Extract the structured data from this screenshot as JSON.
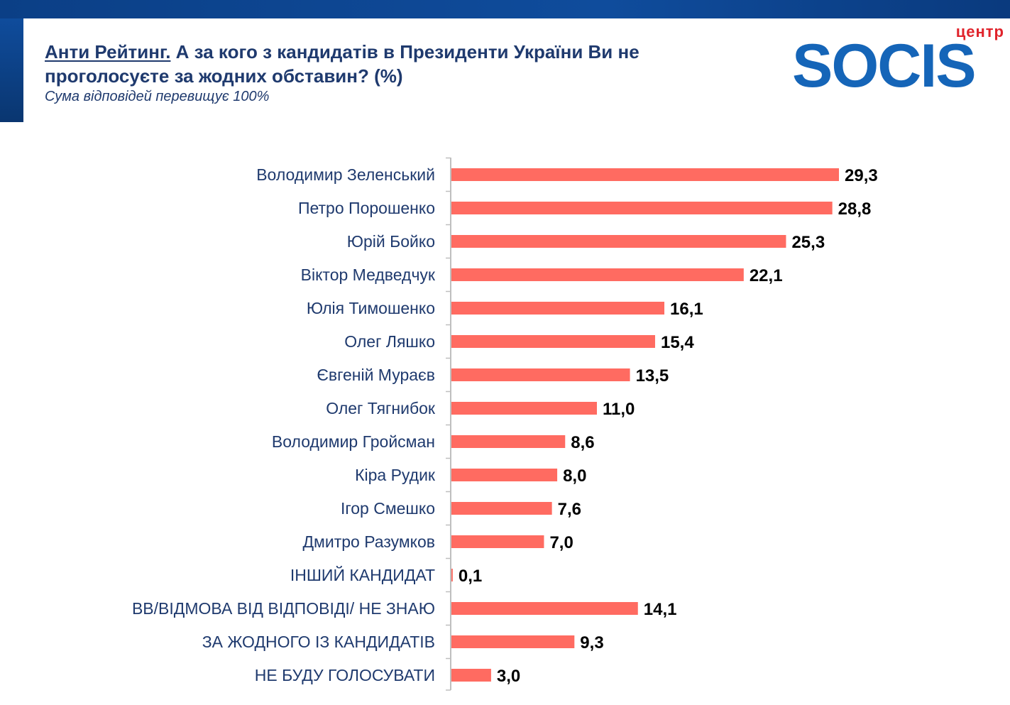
{
  "header": {
    "title_accent": "Анти Рейтинг.",
    "title_rest": " А за кого з кандидатів в Президенти України Ви не проголосуєте за жодних обставин? (%)",
    "subtitle": "Сума відповідей перевищує 100%"
  },
  "logo": {
    "small_text": "центр",
    "big_text": "SOCIS",
    "colors": {
      "small": "#e0232b",
      "big": "#1565b8"
    }
  },
  "colors": {
    "bar": "#ff6b61",
    "label": "#1f3a6e",
    "value": "#000000",
    "axis": "#bfbfbf"
  },
  "chart_data": {
    "type": "bar",
    "orientation": "horizontal",
    "categories": [
      "Володимир Зеленський",
      "Петро Порошенко",
      "Юрій Бойко",
      "Віктор Медведчук",
      "Юлія Тимошенко",
      "Олег Ляшко",
      "Євгеній Мураєв",
      "Олег Тягнибок",
      "Володимир Гройсман",
      "Кіра Рудик",
      "Ігор Смешко",
      "Дмитро Разумков",
      "ІНШИЙ КАНДИДАТ",
      "ВВ/ВІДМОВА ВІД ВІДПОВІДІ/ НЕ ЗНАЮ",
      "ЗА ЖОДНОГО ІЗ КАНДИДАТІВ",
      "НЕ БУДУ ГОЛОСУВАТИ"
    ],
    "values": [
      29.3,
      28.8,
      25.3,
      22.1,
      16.1,
      15.4,
      13.5,
      11.0,
      8.6,
      8.0,
      7.6,
      7.0,
      0.1,
      14.1,
      9.3,
      3.0
    ],
    "value_labels": [
      "29,3",
      "28,8",
      "25,3",
      "22,1",
      "16,1",
      "15,4",
      "13,5",
      "11,0",
      "8,6",
      "8,0",
      "7,6",
      "7,0",
      "0,1",
      "14,1",
      "9,3",
      "3,0"
    ],
    "xlim": [
      0,
      30
    ],
    "grid": false,
    "legend": "none"
  }
}
